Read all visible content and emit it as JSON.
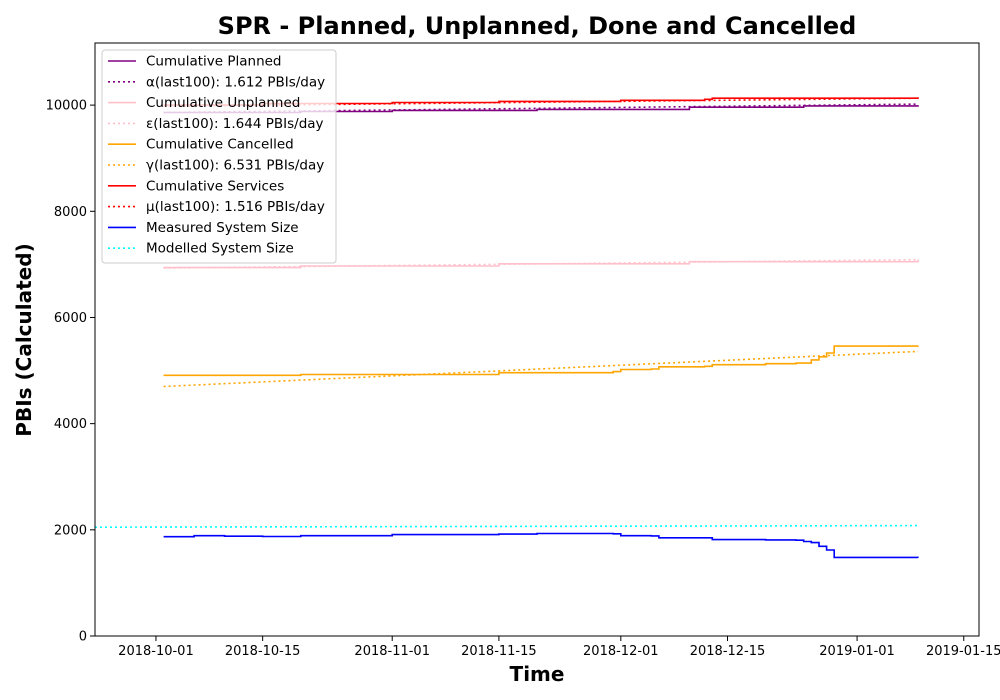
{
  "chart_data": {
    "type": "line",
    "title": "SPR - Planned, Unplanned, Done  and Cancelled",
    "xlabel": "Time",
    "ylabel": "PBIs (Calculated)",
    "xlim": [
      "2018-09-23",
      "2019-01-17"
    ],
    "ylim": [
      0,
      11170
    ],
    "x_ticks": [
      "2018-10-01",
      "2018-10-15",
      "2018-11-01",
      "2018-11-15",
      "2018-12-01",
      "2018-12-15",
      "2019-01-01",
      "2019-01-15"
    ],
    "y_ticks": [
      0,
      2000,
      4000,
      6000,
      8000,
      10000
    ],
    "grid": false,
    "legend_position": "top-left",
    "series": [
      {
        "name": "Cumulative Planned",
        "color": "#800080",
        "style": "solid",
        "x": [
          "2018-10-02",
          "2018-10-20",
          "2018-11-01",
          "2018-11-20",
          "2018-12-10",
          "2018-12-25",
          "2019-01-09"
        ],
        "y": [
          9860,
          9880,
          9900,
          9920,
          9960,
          9985,
          10000
        ]
      },
      {
        "name": "α(last100): 1.612 PBIs/day",
        "color": "#800080",
        "style": "dotted",
        "x": [
          "2018-10-02",
          "2019-01-09"
        ],
        "y": [
          9860,
          10020
        ]
      },
      {
        "name": "Cumulative Unplanned",
        "color": "#ffc0cb",
        "style": "solid",
        "x": [
          "2018-10-02",
          "2018-10-20",
          "2018-11-15",
          "2018-12-10",
          "2019-01-09"
        ],
        "y": [
          6940,
          6970,
          7010,
          7050,
          7090
        ]
      },
      {
        "name": "ε(last100): 1.644 PBIs/day",
        "color": "#ffc0cb",
        "style": "dotted",
        "x": [
          "2018-10-02",
          "2019-01-09"
        ],
        "y": [
          6930,
          7090
        ]
      },
      {
        "name": "Cumulative Cancelled",
        "color": "#ffa500",
        "style": "solid",
        "x": [
          "2018-10-02",
          "2018-10-20",
          "2018-11-15",
          "2018-11-30",
          "2018-12-01",
          "2018-12-05",
          "2018-12-06",
          "2018-12-12",
          "2018-12-13",
          "2018-12-20",
          "2018-12-24",
          "2018-12-26",
          "2018-12-27",
          "2018-12-28",
          "2018-12-29",
          "2019-01-09"
        ],
        "y": [
          4910,
          4925,
          4960,
          4980,
          5020,
          5030,
          5070,
          5080,
          5110,
          5130,
          5140,
          5200,
          5260,
          5330,
          5460,
          5470
        ]
      },
      {
        "name": "γ(last100): 6.531 PBIs/day",
        "color": "#ffa500",
        "style": "dotted",
        "x": [
          "2018-10-02",
          "2019-01-09"
        ],
        "y": [
          4700,
          5360
        ]
      },
      {
        "name": "Cumulative Services",
        "color": "#ff0000",
        "style": "solid",
        "x": [
          "2018-10-02",
          "2018-10-15",
          "2018-11-01",
          "2018-11-15",
          "2018-12-01",
          "2018-12-12",
          "2018-12-13",
          "2019-01-09"
        ],
        "y": [
          10000,
          10030,
          10050,
          10070,
          10090,
          10110,
          10130,
          10150
        ]
      },
      {
        "name": "μ(last100): 1.516 PBIs/day",
        "color": "#ff0000",
        "style": "dotted",
        "x": [
          "2018-10-02",
          "2019-01-09"
        ],
        "y": [
          9980,
          10130
        ]
      },
      {
        "name": "Measured System Size",
        "color": "#0000ff",
        "style": "solid",
        "x": [
          "2018-10-02",
          "2018-10-06",
          "2018-10-10",
          "2018-10-15",
          "2018-10-20",
          "2018-11-01",
          "2018-11-15",
          "2018-11-20",
          "2018-11-30",
          "2018-12-01",
          "2018-12-05",
          "2018-12-06",
          "2018-12-12",
          "2018-12-13",
          "2018-12-20",
          "2018-12-24",
          "2018-12-25",
          "2018-12-26",
          "2018-12-27",
          "2018-12-28",
          "2018-12-29",
          "2019-01-09"
        ],
        "y": [
          1870,
          1890,
          1880,
          1875,
          1890,
          1910,
          1920,
          1930,
          1925,
          1890,
          1885,
          1850,
          1850,
          1815,
          1810,
          1805,
          1780,
          1760,
          1690,
          1620,
          1480,
          1475
        ]
      },
      {
        "name": "Modelled System Size",
        "color": "#00ffff",
        "style": "dotted",
        "x": [
          "2018-09-23",
          "2019-01-09"
        ],
        "y": [
          2050,
          2080
        ]
      }
    ]
  }
}
